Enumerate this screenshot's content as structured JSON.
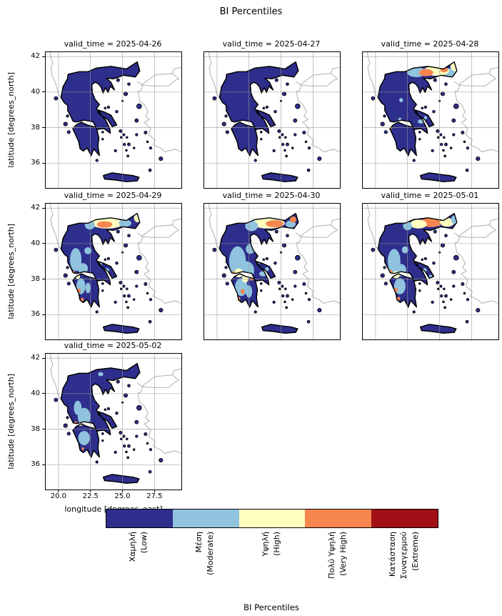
{
  "chart_data": {
    "type": "heatmap",
    "subtype": "faceted categorical choropleth map of Greece (fire danger percentiles)",
    "title": "BI Percentiles",
    "facet_variable": "valid_time",
    "xlabel": "longitude [degrees_east]",
    "ylabel": "latitude [degrees_north]",
    "xlim": [
      19.0,
      29.6
    ],
    "ylim": [
      34.6,
      42.25
    ],
    "xticks": [
      20.0,
      22.5,
      25.0,
      27.5
    ],
    "xtick_labels": [
      "20.0",
      "22.5",
      "25.0",
      "27.5"
    ],
    "yticks": [
      36,
      38,
      40,
      42
    ],
    "ytick_labels": [
      "36",
      "38",
      "40",
      "42"
    ],
    "grid": true,
    "base_category": "Χαμηλή (Low)",
    "overlay_format": "[lon, lat, rx_deg, ry_deg, category_index]",
    "facets": [
      {
        "title": "valid_time = 2025-04-26",
        "overlays": [
          [
            21.2,
            38.05,
            0.13,
            0.1,
            3
          ]
        ]
      },
      {
        "title": "valid_time = 2025-04-27",
        "overlays": [
          [
            21.2,
            38.05,
            0.1,
            0.08,
            3
          ]
        ]
      },
      {
        "title": "valid_time = 2025-04-28",
        "overlays": [
          [
            23.2,
            41.12,
            0.75,
            0.28,
            1
          ],
          [
            25.9,
            41.05,
            0.55,
            0.3,
            1
          ],
          [
            24.75,
            41.2,
            1.0,
            0.28,
            2
          ],
          [
            26.25,
            41.45,
            0.4,
            0.28,
            2
          ],
          [
            23.95,
            41.1,
            0.55,
            0.2,
            3
          ],
          [
            25.35,
            41.25,
            0.3,
            0.14,
            3
          ],
          [
            22.0,
            39.55,
            0.15,
            0.12,
            1
          ],
          [
            23.55,
            38.35,
            0.25,
            0.12,
            1
          ],
          [
            21.9,
            38.45,
            0.13,
            0.1,
            1
          ],
          [
            23.9,
            38.55,
            0.12,
            0.1,
            1
          ],
          [
            21.2,
            38.0,
            0.1,
            0.08,
            3
          ]
        ]
      },
      {
        "title": "valid_time = 2025-04-29",
        "overlays": [
          [
            23.8,
            41.15,
            1.25,
            0.3,
            2
          ],
          [
            23.6,
            41.08,
            0.6,
            0.18,
            3
          ],
          [
            22.45,
            41.05,
            0.4,
            0.25,
            1
          ],
          [
            25.2,
            41.15,
            0.5,
            0.2,
            1
          ],
          [
            26.2,
            41.45,
            0.3,
            0.25,
            2
          ],
          [
            21.35,
            39.1,
            0.45,
            0.65,
            1
          ],
          [
            21.9,
            38.6,
            0.4,
            0.3,
            1
          ],
          [
            22.3,
            39.6,
            0.28,
            0.2,
            1
          ],
          [
            21.75,
            37.6,
            0.35,
            0.45,
            1
          ],
          [
            22.3,
            37.5,
            0.2,
            0.3,
            1
          ],
          [
            23.8,
            38.5,
            0.16,
            0.12,
            1
          ],
          [
            23.3,
            38.9,
            0.12,
            0.1,
            1
          ],
          [
            21.5,
            38.15,
            0.18,
            0.14,
            2
          ],
          [
            21.15,
            38.35,
            0.14,
            0.12,
            3
          ],
          [
            21.6,
            37.35,
            0.14,
            0.12,
            3
          ],
          [
            21.85,
            36.85,
            0.12,
            0.1,
            3
          ]
        ]
      },
      {
        "title": "valid_time = 2025-04-30",
        "overlays": [
          [
            24.0,
            41.15,
            1.3,
            0.3,
            2
          ],
          [
            24.5,
            41.12,
            0.7,
            0.2,
            3
          ],
          [
            22.7,
            41.0,
            0.5,
            0.3,
            1
          ],
          [
            25.75,
            41.1,
            0.4,
            0.2,
            1
          ],
          [
            25.95,
            41.35,
            0.25,
            0.18,
            3
          ],
          [
            21.6,
            39.0,
            0.65,
            0.85,
            1
          ],
          [
            22.3,
            38.5,
            0.6,
            0.5,
            1
          ],
          [
            22.6,
            39.7,
            0.35,
            0.28,
            1
          ],
          [
            21.9,
            37.55,
            0.5,
            0.5,
            1
          ],
          [
            22.5,
            37.3,
            0.25,
            0.35,
            1
          ],
          [
            23.6,
            38.3,
            0.3,
            0.15,
            1
          ],
          [
            23.9,
            38.55,
            0.15,
            0.12,
            1
          ],
          [
            23.2,
            38.9,
            0.14,
            0.12,
            1
          ],
          [
            21.7,
            38.35,
            0.35,
            0.25,
            2
          ],
          [
            22.2,
            38.0,
            0.25,
            0.2,
            2
          ],
          [
            21.3,
            38.3,
            0.16,
            0.14,
            3
          ],
          [
            22.0,
            37.3,
            0.16,
            0.14,
            3
          ],
          [
            21.7,
            36.9,
            0.12,
            0.1,
            3
          ],
          [
            22.7,
            38.0,
            0.12,
            0.1,
            3
          ]
        ]
      },
      {
        "title": "valid_time = 2025-05-01",
        "overlays": [
          [
            24.3,
            41.18,
            0.9,
            0.25,
            3
          ],
          [
            23.35,
            41.1,
            0.65,
            0.25,
            2
          ],
          [
            25.6,
            41.2,
            0.55,
            0.25,
            2
          ],
          [
            26.2,
            41.35,
            0.3,
            0.25,
            1
          ],
          [
            22.5,
            41.0,
            0.35,
            0.25,
            1
          ],
          [
            21.45,
            39.0,
            0.5,
            0.7,
            1
          ],
          [
            22.0,
            38.5,
            0.4,
            0.35,
            1
          ],
          [
            22.3,
            39.65,
            0.25,
            0.2,
            1
          ],
          [
            21.9,
            37.6,
            0.45,
            0.45,
            1
          ],
          [
            23.85,
            38.5,
            0.15,
            0.12,
            1
          ],
          [
            24.3,
            38.15,
            0.12,
            0.1,
            1
          ],
          [
            21.6,
            38.25,
            0.3,
            0.2,
            2
          ],
          [
            21.2,
            38.4,
            0.14,
            0.12,
            3
          ],
          [
            21.6,
            37.4,
            0.14,
            0.12,
            3
          ],
          [
            21.8,
            36.9,
            0.12,
            0.1,
            3
          ]
        ]
      },
      {
        "title": "valid_time = 2025-05-02",
        "overlays": [
          [
            22.0,
            38.7,
            0.5,
            0.5,
            1
          ],
          [
            21.5,
            39.2,
            0.3,
            0.4,
            1
          ],
          [
            22.0,
            37.5,
            0.45,
            0.4,
            1
          ],
          [
            23.3,
            41.1,
            0.2,
            0.12,
            1
          ],
          [
            21.7,
            38.3,
            0.16,
            0.12,
            2
          ],
          [
            21.35,
            38.35,
            0.12,
            0.1,
            3
          ],
          [
            21.9,
            36.9,
            0.1,
            0.08,
            3
          ]
        ]
      }
    ],
    "colorbar": {
      "title": "BI Percentiles",
      "orientation": "horizontal",
      "categories": [
        {
          "label_lines": [
            "Χαμηλή",
            "(Low)"
          ],
          "color": "#2e2e8c"
        },
        {
          "label_lines": [
            "Μέση",
            "(Moderate)"
          ],
          "color": "#8fc3de"
        },
        {
          "label_lines": [
            "Υψηλή",
            "(High)"
          ],
          "color": "#ffffc0"
        },
        {
          "label_lines": [
            "Πολύ Υψηλή",
            "(Very High)"
          ],
          "color": "#f6854e"
        },
        {
          "label_lines": [
            "Κατάσταση",
            "Συναγερμού",
            "(Extreme)"
          ],
          "color": "#a01016"
        }
      ]
    }
  }
}
